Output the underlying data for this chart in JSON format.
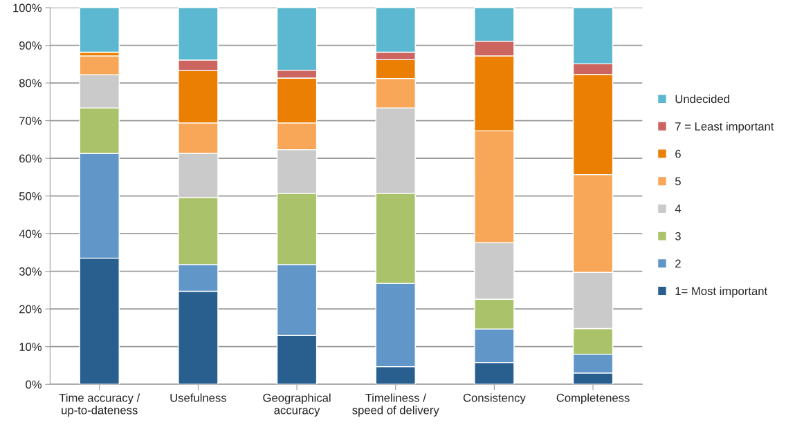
{
  "chart_data": {
    "type": "bar",
    "stacked": true,
    "categories": [
      "Time accuracy /\nup-to-dateness",
      "Usefulness",
      "Geographical\naccuracy",
      "Timeliness /\nspeed of delivery",
      "Consistency",
      "Completeness"
    ],
    "series": [
      {
        "name": "1= Most important",
        "color": "#285f8f",
        "values": [
          33.5,
          24.7,
          13.0,
          4.7,
          5.8,
          3.0
        ]
      },
      {
        "name": "2",
        "color": "#6096c8",
        "values": [
          27.8,
          7.1,
          18.8,
          22.1,
          8.9,
          5.0
        ]
      },
      {
        "name": "3",
        "color": "#aac36b",
        "values": [
          12.1,
          17.8,
          18.9,
          23.9,
          7.9,
          6.8
        ]
      },
      {
        "name": "4",
        "color": "#cacaca",
        "values": [
          8.8,
          11.7,
          11.6,
          22.7,
          15.0,
          14.9
        ]
      },
      {
        "name": "5",
        "color": "#f8a758",
        "values": [
          5.0,
          8.1,
          7.1,
          7.8,
          29.7,
          26.0
        ]
      },
      {
        "name": "6",
        "color": "#eb7f03",
        "values": [
          1.0,
          13.9,
          11.9,
          5.0,
          19.9,
          26.6
        ]
      },
      {
        "name": "7 = Least important",
        "color": "#cc6560",
        "values": [
          0,
          2.8,
          2.1,
          2.0,
          3.9,
          2.8
        ]
      },
      {
        "name": "Undecided",
        "color": "#5bb8d0",
        "values": [
          11.8,
          13.9,
          16.6,
          11.8,
          8.9,
          14.9
        ]
      }
    ],
    "ylim": [
      0,
      100
    ],
    "yticks": [
      {
        "value": 0,
        "label": "0%"
      },
      {
        "value": 10,
        "label": "10%"
      },
      {
        "value": 20,
        "label": "20%"
      },
      {
        "value": 30,
        "label": "30%"
      },
      {
        "value": 40,
        "label": "40%"
      },
      {
        "value": 50,
        "label": "50%"
      },
      {
        "value": 60,
        "label": "60%"
      },
      {
        "value": 70,
        "label": "70%"
      },
      {
        "value": 80,
        "label": "80%"
      },
      {
        "value": 90,
        "label": "90%"
      },
      {
        "value": 100,
        "label": "100%"
      }
    ],
    "grid": "y",
    "legend": "right"
  }
}
